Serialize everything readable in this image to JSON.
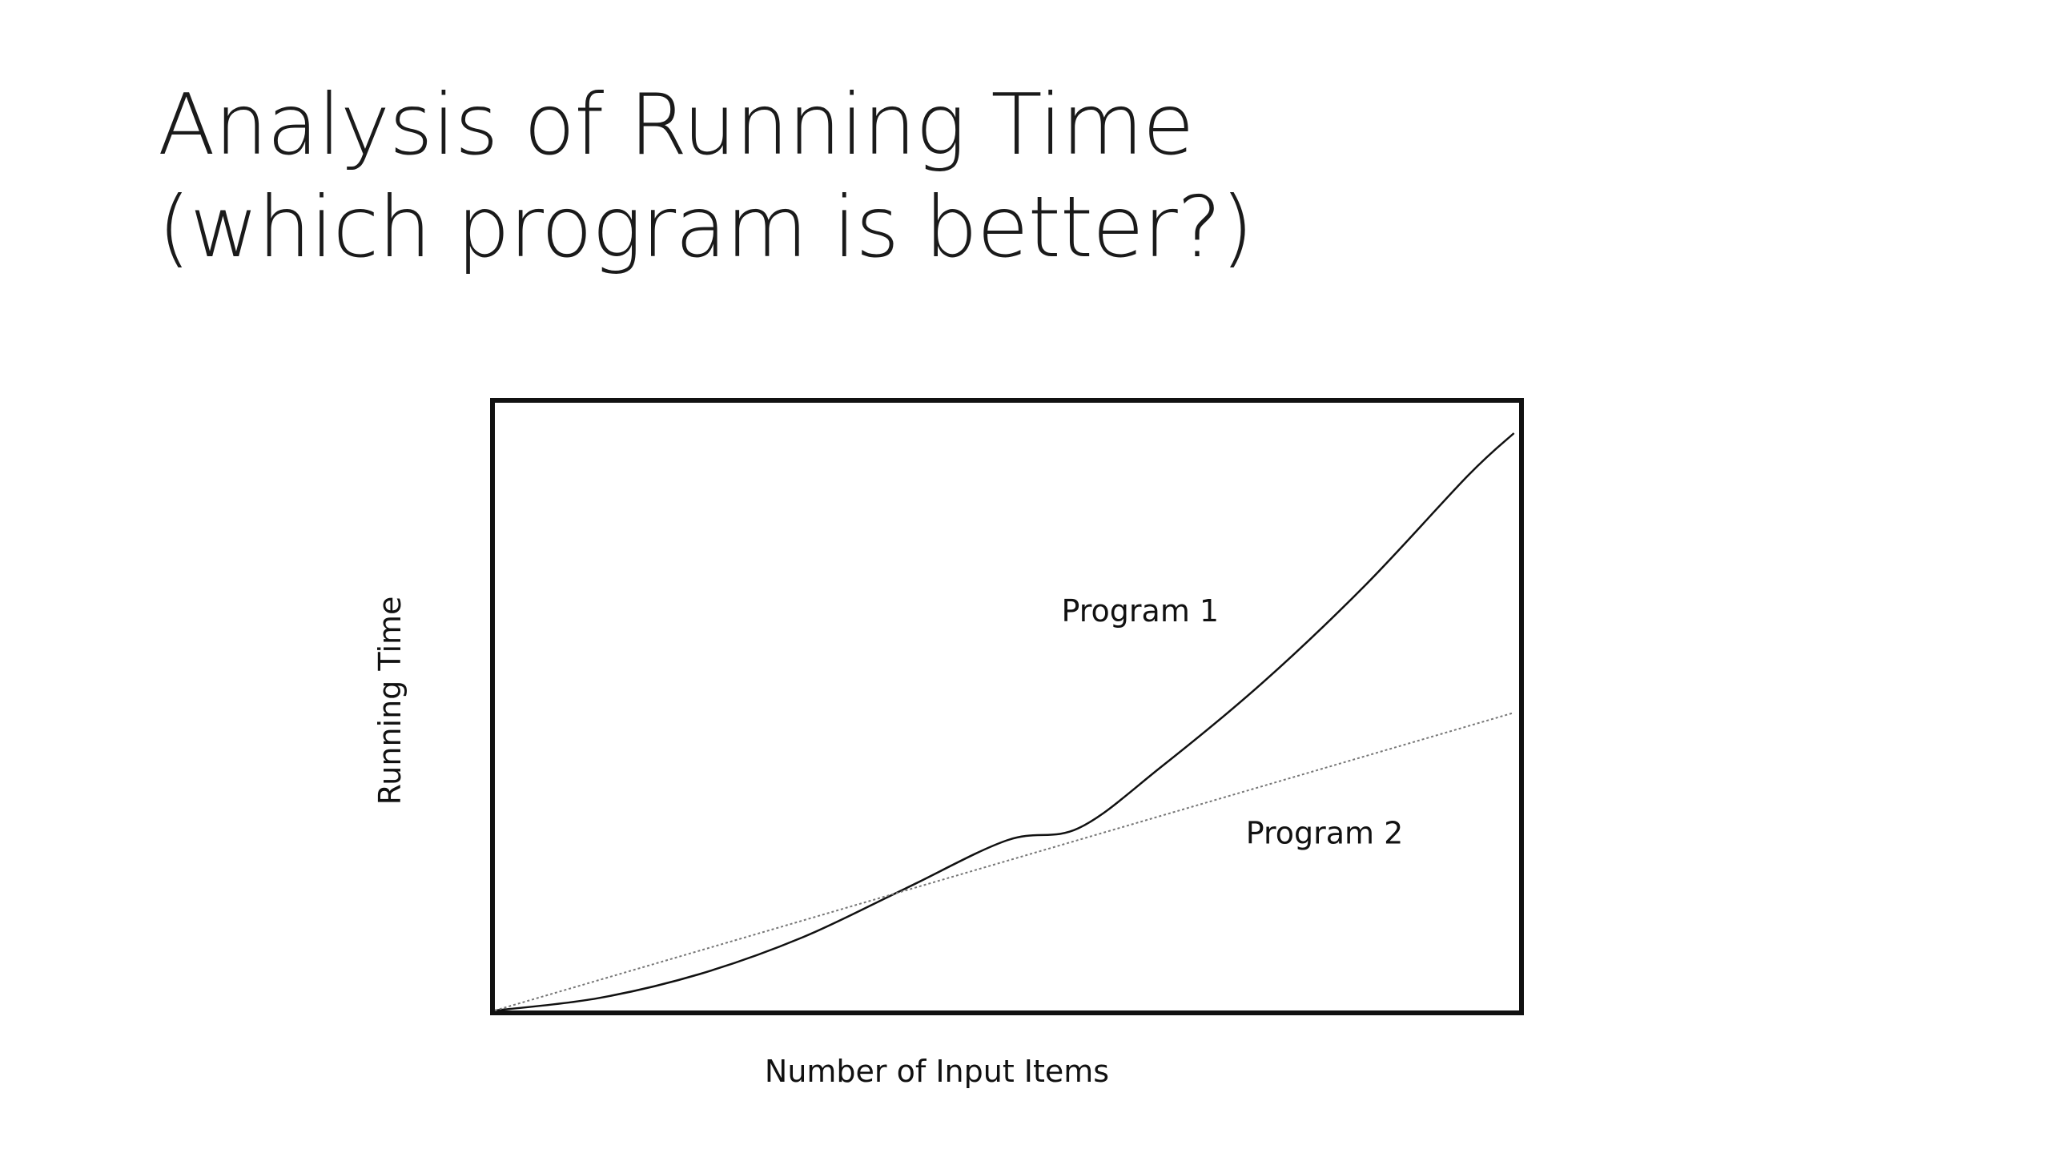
{
  "slide": {
    "title_line1": "Analysis of Running Time",
    "title_line2": "(which program is better?)"
  },
  "chart_data": {
    "type": "line",
    "title": "",
    "xlabel": "Number of Input Items",
    "ylabel": "Running Time",
    "xlim": [
      0,
      10
    ],
    "ylim": [
      0,
      10
    ],
    "grid": false,
    "legend": "none",
    "series": [
      {
        "name": "Program 1",
        "line_style": "solid",
        "color": "#111111",
        "x": [
          0,
          1,
          2,
          3,
          4,
          5,
          5.7,
          6.5,
          7.5,
          8.5,
          9.5,
          9.95
        ],
        "y": [
          0,
          0.2,
          0.6,
          1.2,
          2.0,
          2.8,
          3.0,
          4.0,
          5.4,
          7.0,
          8.8,
          9.5
        ]
      },
      {
        "name": "Program 2",
        "line_style": "dotted",
        "color": "#777777",
        "x": [
          0,
          9.95
        ],
        "y": [
          0,
          4.9
        ]
      }
    ],
    "annotations": [
      {
        "text": "Program 1",
        "x": 6.3,
        "y": 6.4
      },
      {
        "text": "Program 2",
        "x": 8.1,
        "y": 2.75
      }
    ]
  }
}
